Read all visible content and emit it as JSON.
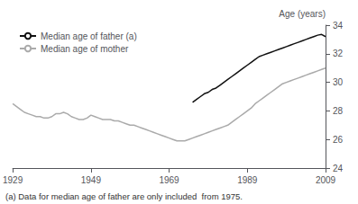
{
  "chart_data": {
    "type": "line",
    "ylabel": "Age (years)",
    "footnote": "(a) Data for median age of father are only included  from 1975.",
    "xlim": [
      1929,
      2009
    ],
    "xticks": [
      1929,
      1949,
      1969,
      1989,
      2009
    ],
    "ylim": [
      24,
      34
    ],
    "yticks": [
      24,
      26,
      28,
      30,
      32,
      34
    ],
    "grid": false,
    "legend": "upper left",
    "series": [
      {
        "name": "Median age of father (a)",
        "color": "#111111",
        "x": [
          1975,
          1976,
          1977,
          1978,
          1979,
          1980,
          1981,
          1982,
          1983,
          1984,
          1985,
          1986,
          1987,
          1988,
          1989,
          1990,
          1991,
          1992,
          1993,
          1994,
          1995,
          1996,
          1997,
          1998,
          1999,
          2000,
          2001,
          2002,
          2003,
          2004,
          2005,
          2006,
          2007,
          2008,
          2009
        ],
        "values": [
          28.6,
          28.8,
          29.0,
          29.2,
          29.3,
          29.5,
          29.6,
          29.8,
          30.0,
          30.2,
          30.4,
          30.6,
          30.8,
          31.0,
          31.2,
          31.4,
          31.6,
          31.8,
          31.9,
          32.0,
          32.1,
          32.2,
          32.3,
          32.4,
          32.5,
          32.6,
          32.7,
          32.8,
          32.9,
          33.0,
          33.1,
          33.2,
          33.3,
          33.35,
          33.2
        ]
      },
      {
        "name": "Median age of mother",
        "color": "#aaaaaa",
        "x": [
          1929,
          1930,
          1931,
          1932,
          1933,
          1934,
          1935,
          1936,
          1937,
          1938,
          1939,
          1940,
          1941,
          1942,
          1943,
          1944,
          1945,
          1946,
          1947,
          1948,
          1949,
          1950,
          1951,
          1952,
          1953,
          1954,
          1955,
          1956,
          1957,
          1958,
          1959,
          1960,
          1961,
          1962,
          1963,
          1964,
          1965,
          1966,
          1967,
          1968,
          1969,
          1970,
          1971,
          1972,
          1973,
          1974,
          1975,
          1976,
          1977,
          1978,
          1979,
          1980,
          1981,
          1982,
          1983,
          1984,
          1985,
          1986,
          1987,
          1988,
          1989,
          1990,
          1991,
          1992,
          1993,
          1994,
          1995,
          1996,
          1997,
          1998,
          1999,
          2000,
          2001,
          2002,
          2003,
          2004,
          2005,
          2006,
          2007,
          2008,
          2009
        ],
        "values": [
          28.5,
          28.3,
          28.1,
          27.9,
          27.8,
          27.7,
          27.6,
          27.6,
          27.5,
          27.5,
          27.6,
          27.8,
          27.8,
          27.9,
          27.8,
          27.6,
          27.5,
          27.4,
          27.4,
          27.5,
          27.7,
          27.6,
          27.5,
          27.4,
          27.4,
          27.4,
          27.3,
          27.3,
          27.2,
          27.1,
          27.0,
          27.0,
          26.9,
          26.8,
          26.7,
          26.6,
          26.5,
          26.4,
          26.3,
          26.2,
          26.1,
          26.0,
          25.9,
          25.9,
          25.9,
          26.0,
          26.1,
          26.2,
          26.3,
          26.4,
          26.5,
          26.6,
          26.7,
          26.8,
          26.9,
          27.0,
          27.2,
          27.4,
          27.6,
          27.8,
          28.0,
          28.2,
          28.5,
          28.7,
          28.9,
          29.1,
          29.3,
          29.5,
          29.7,
          29.9,
          30.0,
          30.1,
          30.2,
          30.3,
          30.4,
          30.5,
          30.6,
          30.7,
          30.8,
          30.9,
          31.0
        ]
      }
    ]
  }
}
